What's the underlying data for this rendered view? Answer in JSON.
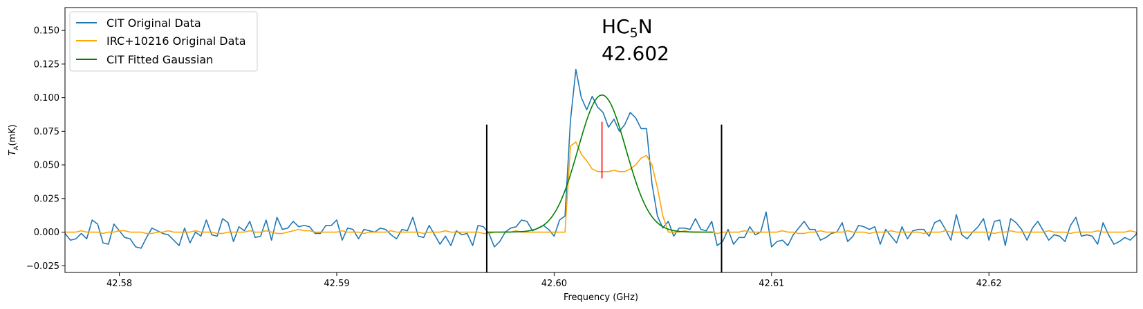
{
  "chart_data": {
    "type": "line",
    "xlabel": "Frequency (GHz)",
    "ylabel": {
      "main": "T",
      "sub": "A",
      "suffix": "(mK)"
    },
    "xlim": [
      42.5775,
      42.6268
    ],
    "ylim": [
      -0.03,
      0.167
    ],
    "xticks": [
      42.58,
      42.59,
      42.6,
      42.61,
      42.62
    ],
    "xtick_labels": [
      "42.58",
      "42.59",
      "42.60",
      "42.61",
      "42.62"
    ],
    "yticks": [
      -0.025,
      0.0,
      0.025,
      0.05,
      0.075,
      0.1,
      0.125,
      0.15
    ],
    "ytick_labels": [
      "−0.025",
      "0.000",
      "0.025",
      "0.050",
      "0.075",
      "0.100",
      "0.125",
      "0.150"
    ],
    "grid": false,
    "legend_position": "top-left",
    "legend": [
      {
        "label": "CIT Original Data",
        "color": "#1f77b4"
      },
      {
        "label": "IRC+10216 Original Data",
        "color": "#ffa500"
      },
      {
        "label": "CIT Fitted Gaussian",
        "color": "#008000"
      }
    ],
    "annotation": {
      "molecule_main": "HC",
      "molecule_sub": "5",
      "molecule_tail": "N",
      "frequency": "42.602"
    },
    "vertical_lines": [
      {
        "x": 42.5969,
        "y0": 0.0,
        "y1": 0.08,
        "color": "#000000"
      },
      {
        "x": 42.6077,
        "y0": 0.0,
        "y1": 0.08,
        "color": "#000000"
      },
      {
        "x": 42.6022,
        "y0": 0.04,
        "y1": 0.082,
        "color": "#ff0000"
      }
    ],
    "series": [
      {
        "name": "CIT Original Data",
        "color": "#1f77b4",
        "x_start": 42.5775,
        "x_step": 0.00025,
        "values": [
          -0.001,
          -0.006,
          -0.005,
          -0.001,
          -0.005,
          0.009,
          0.006,
          -0.008,
          -0.009,
          0.006,
          0.001,
          -0.004,
          -0.005,
          -0.011,
          -0.012,
          -0.004,
          0.003,
          0.001,
          -0.001,
          -0.002,
          -0.006,
          -0.01,
          0.003,
          -0.008,
          0.0,
          -0.003,
          0.009,
          -0.002,
          -0.003,
          0.01,
          0.007,
          -0.007,
          0.004,
          0.001,
          0.008,
          -0.004,
          -0.003,
          0.009,
          -0.006,
          0.011,
          0.002,
          0.003,
          0.008,
          0.004,
          0.005,
          0.004,
          -0.001,
          -0.001,
          0.005,
          0.005,
          0.009,
          -0.006,
          0.003,
          0.002,
          -0.005,
          0.002,
          0.001,
          0.0,
          0.003,
          0.002,
          -0.002,
          -0.005,
          0.002,
          0.001,
          0.011,
          -0.003,
          -0.004,
          0.005,
          -0.002,
          -0.009,
          -0.003,
          -0.01,
          0.001,
          -0.002,
          -0.001,
          -0.01,
          0.005,
          0.004,
          -0.001,
          -0.011,
          -0.007,
          0.0,
          0.003,
          0.004,
          0.009,
          0.008,
          0.001,
          0.003,
          0.005,
          0.002,
          -0.003,
          0.009,
          0.012,
          0.083,
          0.121,
          0.1,
          0.091,
          0.101,
          0.093,
          0.089,
          0.078,
          0.084,
          0.075,
          0.08,
          0.089,
          0.085,
          0.077,
          0.077,
          0.036,
          0.012,
          0.003,
          0.008,
          -0.003,
          0.003,
          0.003,
          0.002,
          0.01,
          0.002,
          0.001,
          0.008,
          -0.01,
          -0.007,
          0.002,
          -0.009,
          -0.004,
          -0.004,
          0.004,
          -0.002,
          0.0,
          0.015,
          -0.011,
          -0.007,
          -0.006,
          -0.01,
          -0.002,
          0.003,
          0.008,
          0.002,
          0.002,
          -0.006,
          -0.004,
          -0.001,
          0.0,
          0.007,
          -0.007,
          -0.003,
          0.005,
          0.004,
          0.002,
          0.004,
          -0.009,
          0.002,
          -0.003,
          -0.008,
          0.004,
          -0.005,
          0.001,
          0.002,
          0.002,
          -0.003,
          0.007,
          0.009,
          0.002,
          -0.006,
          0.013,
          -0.002,
          -0.005,
          0.0,
          0.004,
          0.01,
          -0.006,
          0.008,
          0.009,
          -0.01,
          0.01,
          0.007,
          0.002,
          -0.006,
          0.003,
          0.008,
          0.001,
          -0.006,
          -0.002,
          -0.003,
          -0.007,
          0.005,
          0.011,
          -0.003,
          -0.002,
          -0.003,
          -0.009,
          0.007,
          -0.002,
          -0.009,
          -0.007,
          -0.004,
          -0.006,
          -0.002,
          0.006,
          0.003,
          -0.002
        ]
      },
      {
        "name": "IRC+10216 Original Data",
        "color": "#ffa500",
        "x_start": 42.5775,
        "x_step": 0.00025,
        "values": [
          0.0,
          0.0,
          0.0,
          0.001,
          0.0,
          0.0,
          0.0,
          -0.001,
          0.0,
          0.0,
          0.001,
          0.001,
          0.0,
          0.0,
          0.0,
          -0.001,
          -0.001,
          0.0,
          0.0,
          0.001,
          0.0,
          0.0,
          0.0,
          0.0,
          0.001,
          0.0,
          0.0,
          0.0,
          -0.001,
          -0.001,
          0.0,
          0.0,
          0.0,
          0.0,
          0.001,
          0.0,
          0.0,
          0.001,
          0.0,
          -0.001,
          -0.001,
          0.0,
          0.001,
          0.002,
          0.001,
          0.001,
          0.0,
          0.0,
          0.0,
          0.0,
          0.0,
          0.001,
          0.0,
          0.0,
          0.0,
          -0.001,
          0.0,
          0.0,
          0.0,
          0.0,
          0.001,
          0.0,
          0.0,
          0.0,
          0.0,
          0.0,
          -0.001,
          0.0,
          0.0,
          0.0,
          0.001,
          0.0,
          0.0,
          0.0,
          0.0,
          0.0,
          0.0,
          -0.001,
          -0.001,
          0.0,
          0.0,
          0.0,
          0.0,
          0.001,
          0.0,
          0.0,
          0.0,
          0.0,
          0.0,
          0.0,
          0.0,
          0.0,
          0.0,
          0.064,
          0.067,
          0.058,
          0.053,
          0.047,
          0.045,
          0.045,
          0.045,
          0.046,
          0.045,
          0.045,
          0.047,
          0.05,
          0.055,
          0.057,
          0.05,
          0.033,
          0.012,
          0.0,
          0.0,
          0.0,
          0.001,
          0.0,
          0.0,
          0.0,
          0.0,
          0.0,
          -0.001,
          0.0,
          0.0,
          0.0,
          0.0,
          0.001,
          0.0,
          0.0,
          0.0,
          0.0,
          0.0,
          0.0,
          0.001,
          0.0,
          0.0,
          -0.001,
          -0.001,
          0.0,
          0.0,
          0.001,
          0.0,
          0.0,
          0.0,
          0.0,
          0.001,
          0.0,
          0.0,
          0.0,
          -0.001,
          0.0,
          0.0,
          0.0,
          0.001,
          0.0,
          0.0,
          0.0,
          0.0,
          0.0,
          -0.001,
          0.0,
          0.0,
          0.0,
          0.001,
          0.0,
          0.0,
          0.0,
          0.0,
          0.0,
          0.0,
          0.0,
          0.0,
          -0.001,
          0.0,
          0.0,
          0.001,
          0.0,
          0.0,
          0.0,
          0.0,
          0.0,
          0.0,
          0.001,
          0.0,
          0.0,
          0.0,
          -0.001,
          0.0,
          0.0,
          0.0,
          0.0,
          0.001,
          0.0,
          0.0,
          0.0,
          0.0,
          0.0,
          0.001,
          0.0,
          0.0,
          0.0,
          0.0
        ]
      },
      {
        "name": "CIT Fitted Gaussian",
        "color": "#008000",
        "model": "gaussian",
        "amplitude": 0.102,
        "center": 42.6022,
        "sigma": 0.0011,
        "x_range": [
          42.5969,
          42.6073
        ]
      }
    ]
  }
}
